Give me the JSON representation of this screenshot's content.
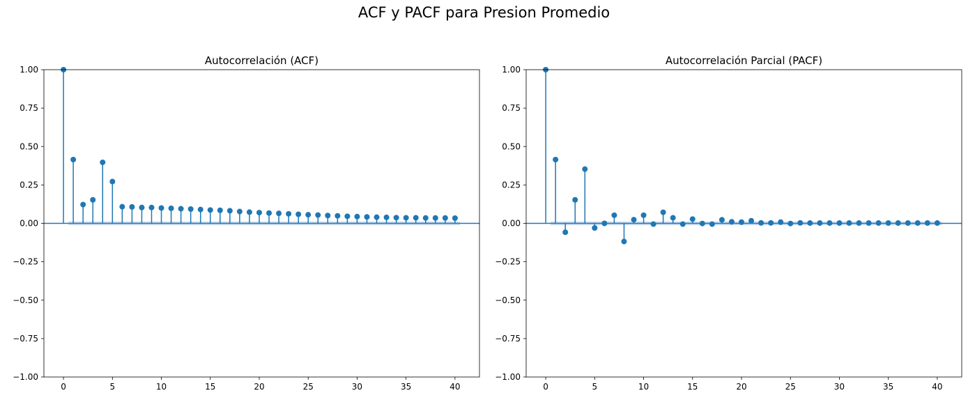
{
  "figure": {
    "title": "ACF y PACF para Presion Promedio"
  },
  "colors": {
    "series": "#1f77b4",
    "band": "#aec7e8",
    "axis": "#000000"
  },
  "chart_data": [
    {
      "type": "stem",
      "title": "Autocorrelación (ACF)",
      "xlabel": "",
      "ylabel": "",
      "xlim": [
        -2,
        42.5
      ],
      "ylim": [
        -1,
        1
      ],
      "xticks": [
        0,
        5,
        10,
        15,
        20,
        25,
        30,
        35,
        40
      ],
      "xtick_labels": [
        "0",
        "5",
        "10",
        "15",
        "20",
        "25",
        "30",
        "35",
        "40"
      ],
      "yticks": [
        1,
        0.75,
        0.5,
        0.25,
        0,
        -0.25,
        -0.5,
        -0.75,
        -1
      ],
      "ytick_labels": [
        "1.00",
        "0.75",
        "0.50",
        "0.25",
        "0.00",
        "−0.25",
        "−0.50",
        "−0.75",
        "−1.00"
      ],
      "confidence_band": 0.012,
      "grid": false,
      "x": [
        0,
        1,
        2,
        3,
        4,
        5,
        6,
        7,
        8,
        9,
        10,
        11,
        12,
        13,
        14,
        15,
        16,
        17,
        18,
        19,
        20,
        21,
        22,
        23,
        24,
        25,
        26,
        27,
        28,
        29,
        30,
        31,
        32,
        33,
        34,
        35,
        36,
        37,
        38,
        39,
        40
      ],
      "values": [
        1.0,
        0.415,
        0.122,
        0.153,
        0.397,
        0.272,
        0.108,
        0.107,
        0.103,
        0.103,
        0.1,
        0.098,
        0.095,
        0.093,
        0.09,
        0.087,
        0.085,
        0.082,
        0.077,
        0.073,
        0.07,
        0.067,
        0.065,
        0.062,
        0.059,
        0.056,
        0.054,
        0.051,
        0.049,
        0.046,
        0.044,
        0.042,
        0.04,
        0.039,
        0.037,
        0.036,
        0.036,
        0.035,
        0.035,
        0.035,
        0.034
      ]
    },
    {
      "type": "stem",
      "title": "Autocorrelación Parcial (PACF)",
      "xlabel": "",
      "ylabel": "",
      "xlim": [
        -2,
        42.5
      ],
      "ylim": [
        -1,
        1
      ],
      "xticks": [
        0,
        5,
        10,
        15,
        20,
        25,
        30,
        35,
        40
      ],
      "xtick_labels": [
        "0",
        "5",
        "10",
        "15",
        "20",
        "25",
        "30",
        "35",
        "40"
      ],
      "yticks": [
        1,
        0.75,
        0.5,
        0.25,
        0,
        -0.25,
        -0.5,
        -0.75,
        -1
      ],
      "ytick_labels": [
        "1.00",
        "0.75",
        "0.50",
        "0.25",
        "0.00",
        "−0.25",
        "−0.50",
        "−0.75",
        "−1.00"
      ],
      "confidence_band": 0.012,
      "grid": false,
      "x": [
        0,
        1,
        2,
        3,
        4,
        5,
        6,
        7,
        8,
        9,
        10,
        11,
        12,
        13,
        14,
        15,
        16,
        17,
        18,
        19,
        20,
        21,
        22,
        23,
        24,
        25,
        26,
        27,
        28,
        29,
        30,
        31,
        32,
        33,
        34,
        35,
        36,
        37,
        38,
        39,
        40
      ],
      "values": [
        1.0,
        0.415,
        -0.058,
        0.153,
        0.353,
        -0.03,
        0.0,
        0.053,
        -0.118,
        0.024,
        0.053,
        -0.005,
        0.072,
        0.036,
        -0.005,
        0.028,
        -0.001,
        -0.005,
        0.023,
        0.01,
        0.008,
        0.017,
        0.003,
        0.003,
        0.008,
        -0.001,
        0.003,
        0.002,
        0.002,
        0.002,
        0.002,
        0.002,
        0.002,
        0.002,
        0.002,
        0.002,
        0.002,
        0.002,
        0.002,
        0.002,
        0.002
      ]
    }
  ]
}
